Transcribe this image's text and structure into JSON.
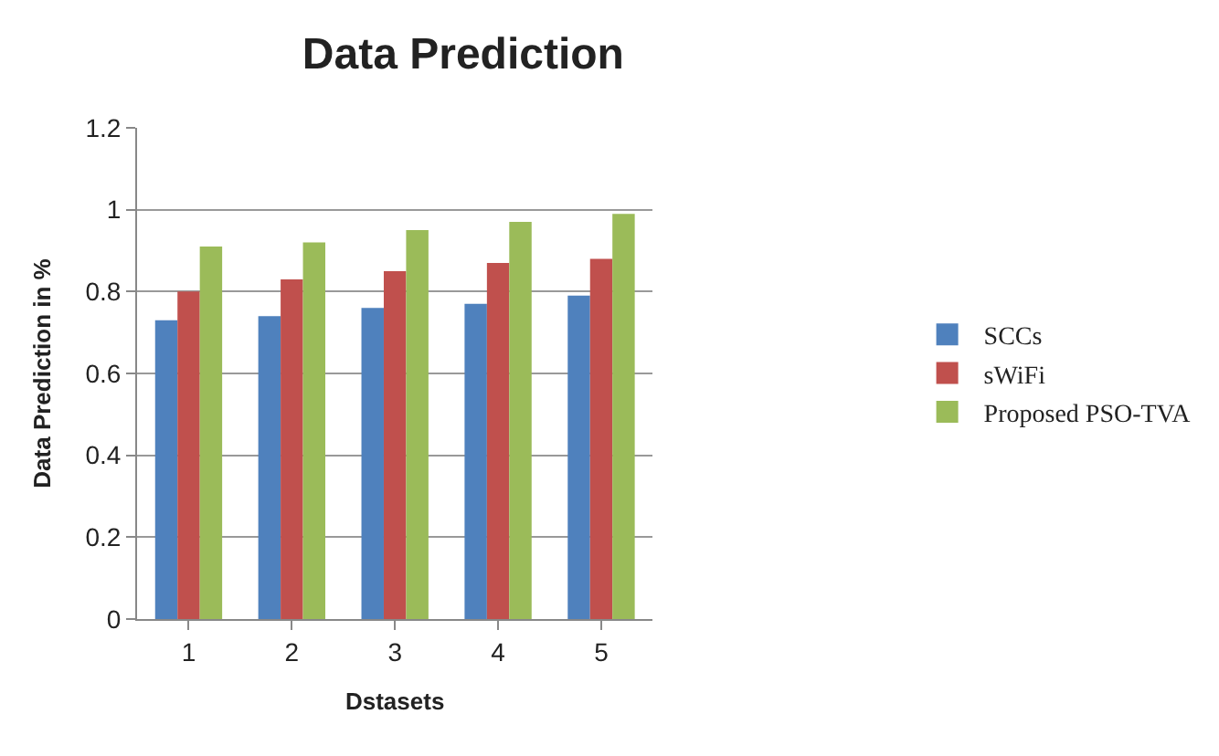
{
  "chart_data": {
    "type": "bar",
    "title": "Data Prediction",
    "xlabel": "Dstasets",
    "ylabel": "Data Prediction in %",
    "categories": [
      "1",
      "2",
      "3",
      "4",
      "5"
    ],
    "series": [
      {
        "name": "SCCs",
        "color": "#4f81bd",
        "values": [
          0.73,
          0.74,
          0.76,
          0.77,
          0.79
        ]
      },
      {
        "name": "sWiFi",
        "color": "#c0504d",
        "values": [
          0.8,
          0.83,
          0.85,
          0.87,
          0.88
        ]
      },
      {
        "name": "Proposed PSO-TVA",
        "color": "#9bbb59",
        "values": [
          0.91,
          0.92,
          0.95,
          0.97,
          0.99
        ]
      }
    ],
    "ylim": [
      0,
      1.2
    ],
    "yticks": [
      0,
      0.2,
      0.4,
      0.6,
      0.8,
      1,
      1.2
    ],
    "grid": "y",
    "legend": "right"
  }
}
